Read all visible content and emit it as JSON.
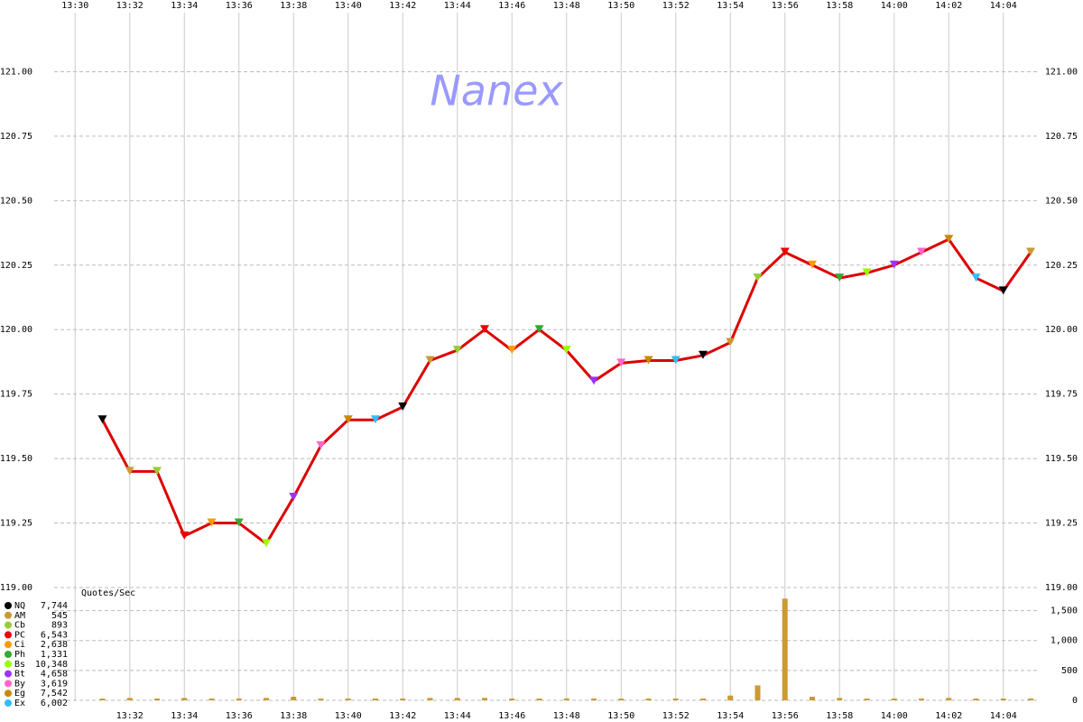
{
  "chart_data": [
    {
      "type": "line",
      "watermark": "Nanex",
      "x": [
        "13:31",
        "13:32",
        "13:33",
        "13:34",
        "13:35",
        "13:36",
        "13:37",
        "13:38",
        "13:39",
        "13:40",
        "13:41",
        "13:42",
        "13:43",
        "13:44",
        "13:45",
        "13:46",
        "13:47",
        "13:48",
        "13:49",
        "13:50",
        "13:51",
        "13:52",
        "13:53",
        "13:54",
        "13:55",
        "13:56",
        "13:57",
        "13:58",
        "13:59",
        "14:00",
        "14:01",
        "14:02",
        "14:03",
        "14:04",
        "14:05"
      ],
      "series": [
        {
          "color": "#dd0000",
          "values": [
            119.65,
            119.45,
            119.45,
            119.2,
            119.25,
            119.25,
            119.17,
            119.35,
            119.55,
            119.65,
            119.65,
            119.7,
            119.88,
            119.92,
            120.0,
            119.92,
            120.0,
            119.92,
            119.8,
            119.87,
            119.88,
            119.88,
            119.9,
            119.95,
            120.2,
            120.3,
            120.25,
            120.2,
            120.22,
            120.25,
            120.3,
            120.35,
            120.2,
            120.15,
            120.3
          ]
        }
      ],
      "xlim": [
        "13:29",
        "14:05"
      ],
      "xticks": [
        "13:30",
        "13:32",
        "13:34",
        "13:36",
        "13:38",
        "13:40",
        "13:42",
        "13:44",
        "13:46",
        "13:48",
        "13:50",
        "13:52",
        "13:54",
        "13:56",
        "13:58",
        "14:00",
        "14:02",
        "14:04"
      ],
      "ylim": [
        119,
        121.25
      ],
      "yticks": [
        {
          "value": 119,
          "label": "119.00"
        },
        {
          "value": 119.25,
          "label": "119.25"
        },
        {
          "value": 119.5,
          "label": "119.50"
        },
        {
          "value": 119.75,
          "label": "119.75"
        },
        {
          "value": 120,
          "label": "120.00"
        },
        {
          "value": 120.25,
          "label": "120.25"
        },
        {
          "value": 120.5,
          "label": "120.50"
        },
        {
          "value": 120.75,
          "label": "120.75"
        },
        {
          "value": 121,
          "label": "121.00"
        }
      ],
      "grid": true
    },
    {
      "type": "bar",
      "title": "Quotes/Sec",
      "x": [
        "13:31",
        "13:32",
        "13:33",
        "13:34",
        "13:35",
        "13:36",
        "13:37",
        "13:38",
        "13:39",
        "13:40",
        "13:41",
        "13:42",
        "13:43",
        "13:44",
        "13:45",
        "13:46",
        "13:47",
        "13:48",
        "13:49",
        "13:50",
        "13:51",
        "13:52",
        "13:53",
        "13:54",
        "13:55",
        "13:56",
        "13:57",
        "13:58",
        "13:59",
        "14:00",
        "14:01",
        "14:02",
        "14:03",
        "14:04",
        "14:05"
      ],
      "series": [
        {
          "color": "#cc9933",
          "values": [
            30,
            40,
            30,
            40,
            30,
            30,
            40,
            60,
            30,
            30,
            30,
            30,
            40,
            40,
            40,
            30,
            30,
            30,
            30,
            30,
            30,
            30,
            30,
            80,
            250,
            1700,
            60,
            40,
            30,
            30,
            30,
            40,
            30,
            30,
            30
          ]
        }
      ],
      "ylim": [
        0,
        1750
      ],
      "yticks": [
        0,
        500,
        {
          "value": 1000,
          "label": "1,000"
        },
        {
          "value": 1500,
          "label": "1,500"
        }
      ]
    }
  ],
  "legend": [
    {
      "name": "NQ",
      "count": "7,744",
      "color": "#000000"
    },
    {
      "name": "AM",
      "count": "545",
      "color": "#cc9933"
    },
    {
      "name": "Cb",
      "count": "893",
      "color": "#99cc33"
    },
    {
      "name": "PC",
      "count": "6,543",
      "color": "#ee0000"
    },
    {
      "name": "Ci",
      "count": "2,638",
      "color": "#ff9900"
    },
    {
      "name": "Ph",
      "count": "1,331",
      "color": "#33aa33"
    },
    {
      "name": "Bs",
      "count": "10,348",
      "color": "#99ff00"
    },
    {
      "name": "Bt",
      "count": "4,658",
      "color": "#9933ff"
    },
    {
      "name": "By",
      "count": "3,619",
      "color": "#ff66cc"
    },
    {
      "name": "Eg",
      "count": "7,542",
      "color": "#cc8800"
    },
    {
      "name": "Ex",
      "count": "6,002",
      "color": "#33bbff"
    }
  ]
}
